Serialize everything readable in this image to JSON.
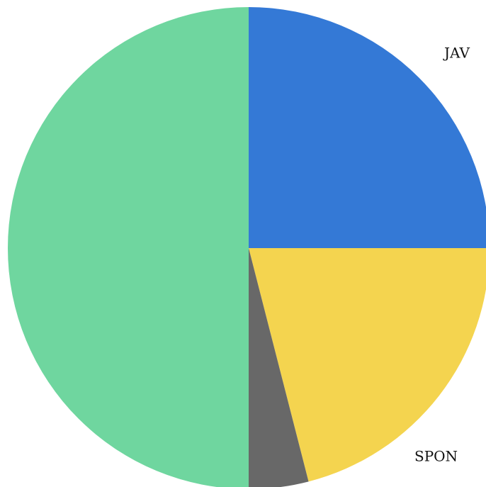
{
  "chart_data": {
    "type": "pie",
    "categories": [
      "JAV",
      "SPON",
      null,
      null
    ],
    "values": [
      25,
      21,
      4,
      50
    ],
    "colors": [
      "#3479d6",
      "#f4d44f",
      "#686868",
      "#6fd69f"
    ]
  }
}
